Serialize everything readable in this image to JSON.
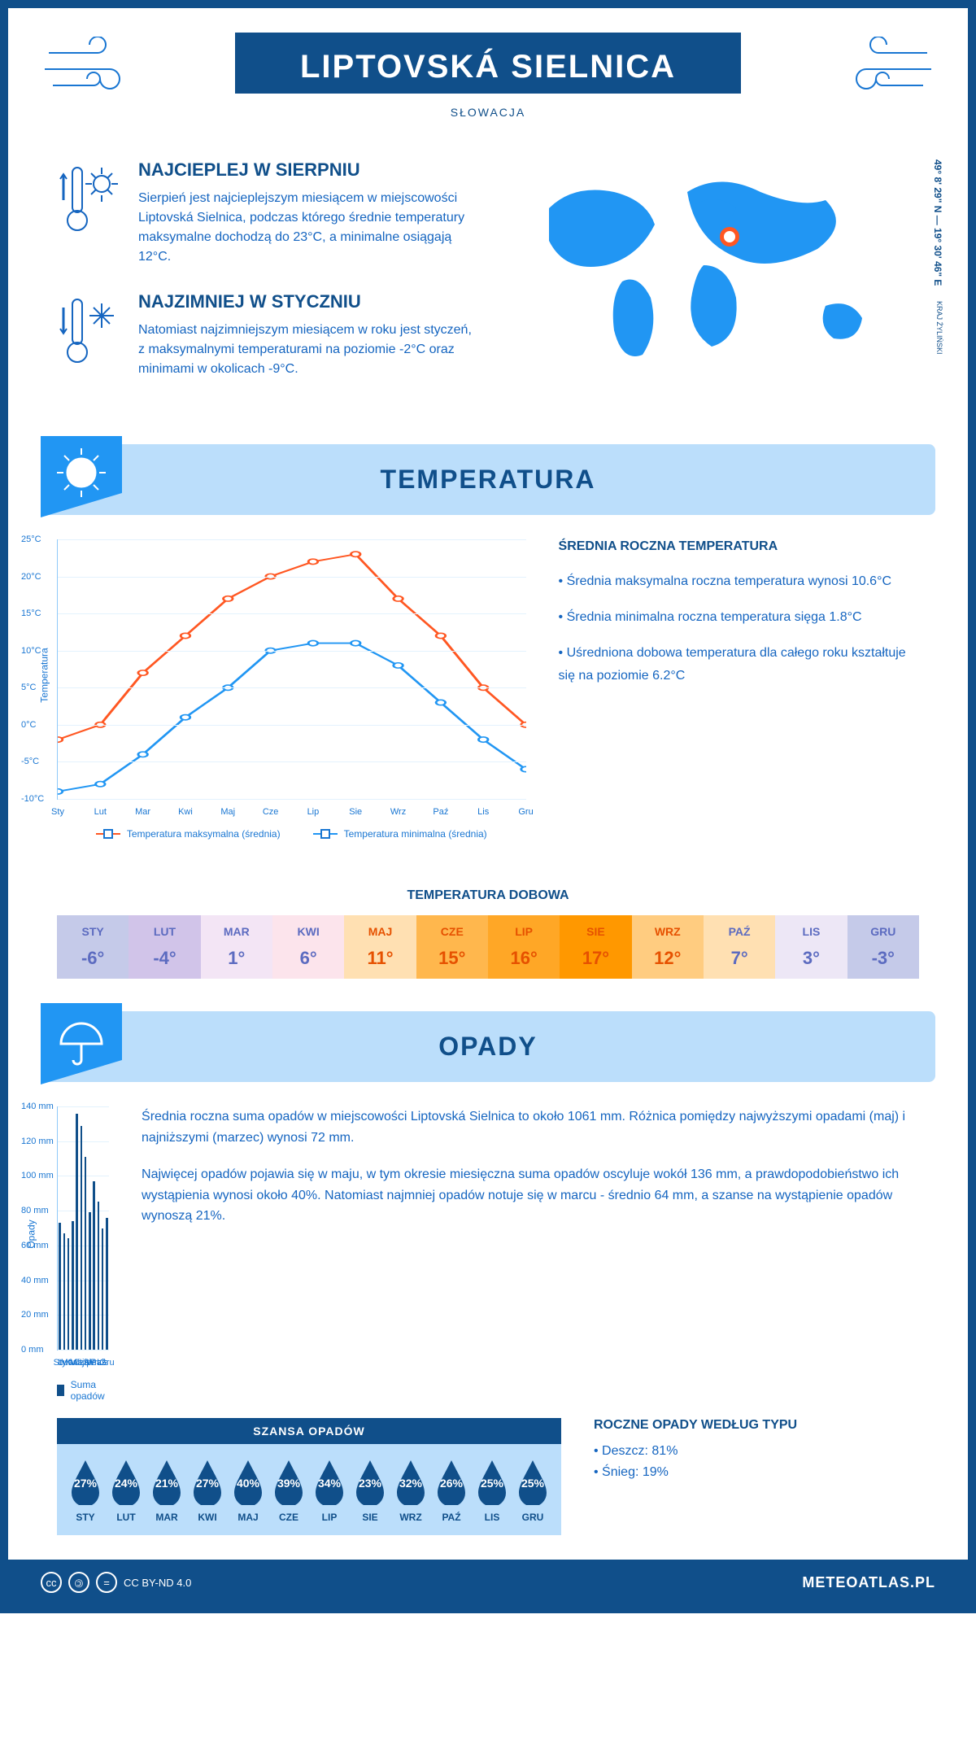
{
  "header": {
    "title": "LIPTOVSKÁ SIELNICA",
    "country": "SŁOWACJA"
  },
  "coords": "49° 8' 29\" N — 19° 30' 46\" E",
  "region": "KRAJ ŻYLIŃSKI",
  "map_marker": {
    "left_pct": 52,
    "top_pct": 32
  },
  "intro": {
    "warm": {
      "title": "NAJCIEPLEJ W SIERPNIU",
      "text": "Sierpień jest najcieplejszym miesiącem w miejscowości Liptovská Sielnica, podczas którego średnie temperatury maksymalne dochodzą do 23°C, a minimalne osiągają 12°C."
    },
    "cold": {
      "title": "NAJZIMNIEJ W STYCZNIU",
      "text": "Natomiast najzimniejszym miesiącem w roku jest styczeń, z maksymalnymi temperaturami na poziomie -2°C oraz minimami w okolicach -9°C."
    }
  },
  "sections": {
    "temperature": "TEMPERATURA",
    "precip": "OPADY"
  },
  "temp_chart": {
    "type": "line",
    "months": [
      "Sty",
      "Lut",
      "Mar",
      "Kwi",
      "Maj",
      "Cze",
      "Lip",
      "Sie",
      "Wrz",
      "Paź",
      "Lis",
      "Gru"
    ],
    "y_label": "Temperatura",
    "ylim": [
      -10,
      25
    ],
    "ytick_step": 5,
    "y_suffix": "°C",
    "series": [
      {
        "name": "Temperatura maksymalna (średnia)",
        "color": "#ff5722",
        "values": [
          -2,
          0,
          7,
          12,
          17,
          20,
          22,
          23,
          17,
          12,
          5,
          0
        ]
      },
      {
        "name": "Temperatura minimalna (średnia)",
        "color": "#2196f3",
        "values": [
          -9,
          -8,
          -4,
          1,
          5,
          10,
          11,
          11,
          8,
          3,
          -2,
          -6
        ]
      }
    ],
    "grid_color": "#e3f2fd",
    "marker_style": "circle"
  },
  "temp_stats": {
    "title": "ŚREDNIA ROCZNA TEMPERATURA",
    "items": [
      "• Średnia maksymalna roczna temperatura wynosi 10.6°C",
      "• Średnia minimalna roczna temperatura sięga 1.8°C",
      "• Uśredniona dobowa temperatura dla całego roku kształtuje się na poziomie 6.2°C"
    ]
  },
  "daily": {
    "title": "TEMPERATURA DOBOWA",
    "months": [
      "STY",
      "LUT",
      "MAR",
      "KWI",
      "MAJ",
      "CZE",
      "LIP",
      "SIE",
      "WRZ",
      "PAŹ",
      "LIS",
      "GRU"
    ],
    "values": [
      "-6°",
      "-4°",
      "1°",
      "6°",
      "11°",
      "15°",
      "16°",
      "17°",
      "12°",
      "7°",
      "3°",
      "-3°"
    ],
    "bg_colors": [
      "#c5cae9",
      "#d1c4e9",
      "#f3e5f5",
      "#fce4ec",
      "#ffe0b2",
      "#ffb74d",
      "#ffa726",
      "#ff9800",
      "#ffcc80",
      "#ffe0b2",
      "#ede7f6",
      "#c5cae9"
    ],
    "text_color": "#5c6bc0",
    "hot_text_color": "#e65100"
  },
  "precip_chart": {
    "type": "bar",
    "months": [
      "Sty",
      "Lut",
      "Mar",
      "Kwi",
      "Maj",
      "Cze",
      "Lip",
      "Sie",
      "Wrz",
      "Paź",
      "Lis",
      "Gru"
    ],
    "values": [
      73,
      67,
      64,
      74,
      136,
      129,
      111,
      79,
      97,
      85,
      70,
      76
    ],
    "y_label": "Opady",
    "ylim": [
      0,
      140
    ],
    "ytick_step": 20,
    "y_suffix": " mm",
    "bar_color": "#104f8a",
    "legend": "Suma opadów"
  },
  "precip_text": [
    "Średnia roczna suma opadów w miejscowości Liptovská Sielnica to około 1061 mm. Różnica pomiędzy najwyższymi opadami (maj) i najniższymi (marzec) wynosi 72 mm.",
    "Najwięcej opadów pojawia się w maju, w tym okresie miesięczna suma opadów oscyluje wokół 136 mm, a prawdopodobieństwo ich wystąpienia wynosi około 40%. Natomiast najmniej opadów notuje się w marcu - średnio 64 mm, a szanse na wystąpienie opadów wynoszą 21%."
  ],
  "chance": {
    "title": "SZANSA OPADÓW",
    "months": [
      "STY",
      "LUT",
      "MAR",
      "KWI",
      "MAJ",
      "CZE",
      "LIP",
      "SIE",
      "WRZ",
      "PAŹ",
      "LIS",
      "GRU"
    ],
    "values": [
      "27%",
      "24%",
      "21%",
      "27%",
      "40%",
      "39%",
      "34%",
      "23%",
      "32%",
      "26%",
      "25%",
      "25%"
    ],
    "drop_color": "#104f8a",
    "bg_color": "#bbdefb"
  },
  "precip_type": {
    "title": "ROCZNE OPADY WEDŁUG TYPU",
    "items": [
      "• Deszcz: 81%",
      "• Śnieg: 19%"
    ]
  },
  "footer": {
    "license": "CC BY-ND 4.0",
    "brand": "METEOATLAS.PL"
  },
  "colors": {
    "primary": "#104f8a",
    "accent": "#2196f3",
    "light": "#bbdefb",
    "world_map": "#2196f3"
  }
}
